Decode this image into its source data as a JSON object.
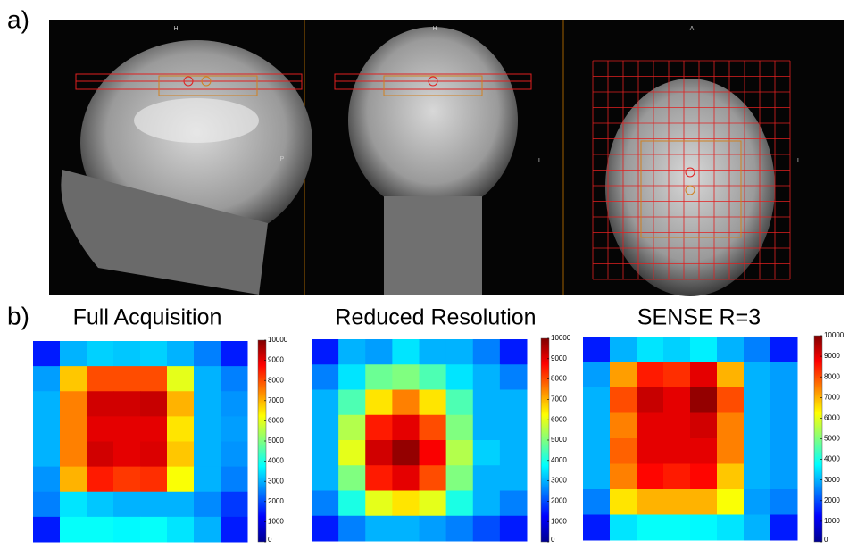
{
  "panel_labels": [
    "a)",
    "b)"
  ],
  "mri_labels": {
    "sagittal": [
      "H",
      "P"
    ],
    "coronal": [
      "H",
      "L"
    ],
    "axial": [
      "A",
      "L"
    ]
  },
  "chart_data": [
    {
      "type": "heatmap",
      "title": "Full Acquisition",
      "zlim": [
        0,
        10000
      ],
      "zticks": [
        0,
        1000,
        2000,
        3000,
        4000,
        5000,
        6000,
        7000,
        8000,
        9000,
        10000
      ],
      "values": [
        [
          1500,
          3000,
          3300,
          3200,
          3300,
          3000,
          2500,
          1500
        ],
        [
          2800,
          6800,
          8000,
          8000,
          8000,
          6000,
          3000,
          2500
        ],
        [
          3000,
          7500,
          9200,
          9200,
          9300,
          7000,
          3000,
          2700
        ],
        [
          3000,
          7500,
          9000,
          9000,
          9000,
          6500,
          3000,
          2800
        ],
        [
          3000,
          7500,
          9200,
          9000,
          9100,
          6800,
          3000,
          2700
        ],
        [
          2700,
          7000,
          8500,
          8200,
          8300,
          6200,
          3000,
          2500
        ],
        [
          2500,
          3500,
          3200,
          3000,
          3000,
          3000,
          2600,
          1800
        ],
        [
          1500,
          3800,
          3800,
          3700,
          3800,
          3500,
          3000,
          1500
        ]
      ]
    },
    {
      "type": "heatmap",
      "title": "Reduced Resolution",
      "zlim": [
        0,
        10000
      ],
      "zticks": [
        0,
        1000,
        2000,
        3000,
        4000,
        5000,
        6000,
        7000,
        8000,
        9000,
        10000
      ],
      "values": [
        [
          1500,
          3000,
          2800,
          3500,
          3000,
          3000,
          2500,
          1500
        ],
        [
          2500,
          3500,
          4800,
          5000,
          4500,
          3500,
          3000,
          2500
        ],
        [
          3000,
          4500,
          6500,
          7500,
          6500,
          4500,
          3000,
          3000
        ],
        [
          3000,
          5500,
          8500,
          9000,
          8000,
          5000,
          3000,
          3000
        ],
        [
          3000,
          6000,
          9200,
          9800,
          8800,
          5500,
          3300,
          3000
        ],
        [
          3000,
          5000,
          8500,
          9000,
          8000,
          5000,
          3000,
          3000
        ],
        [
          2500,
          4000,
          6000,
          6500,
          6000,
          4000,
          3000,
          2500
        ],
        [
          1500,
          2500,
          3000,
          3000,
          2800,
          2500,
          2000,
          1500
        ]
      ]
    },
    {
      "type": "heatmap",
      "title": "SENSE R=3",
      "zlim": [
        0,
        10000
      ],
      "zticks": [
        0,
        1000,
        2000,
        3000,
        4000,
        5000,
        6000,
        7000,
        8000,
        9000,
        10000
      ],
      "values": [
        [
          1500,
          3000,
          3500,
          3300,
          3600,
          3000,
          2500,
          1500
        ],
        [
          2800,
          7200,
          8500,
          8300,
          9000,
          7000,
          3000,
          2800
        ],
        [
          3000,
          8000,
          9300,
          9000,
          9800,
          8000,
          3000,
          2800
        ],
        [
          3000,
          7500,
          9000,
          9000,
          9200,
          7500,
          3000,
          2800
        ],
        [
          3000,
          7800,
          9000,
          9000,
          9000,
          7500,
          3000,
          2800
        ],
        [
          3000,
          7500,
          8700,
          8500,
          8700,
          6800,
          3000,
          2800
        ],
        [
          2500,
          6500,
          7000,
          7000,
          7000,
          6200,
          2800,
          2500
        ],
        [
          1500,
          3500,
          3800,
          3800,
          3700,
          3500,
          3000,
          1500
        ]
      ]
    }
  ]
}
